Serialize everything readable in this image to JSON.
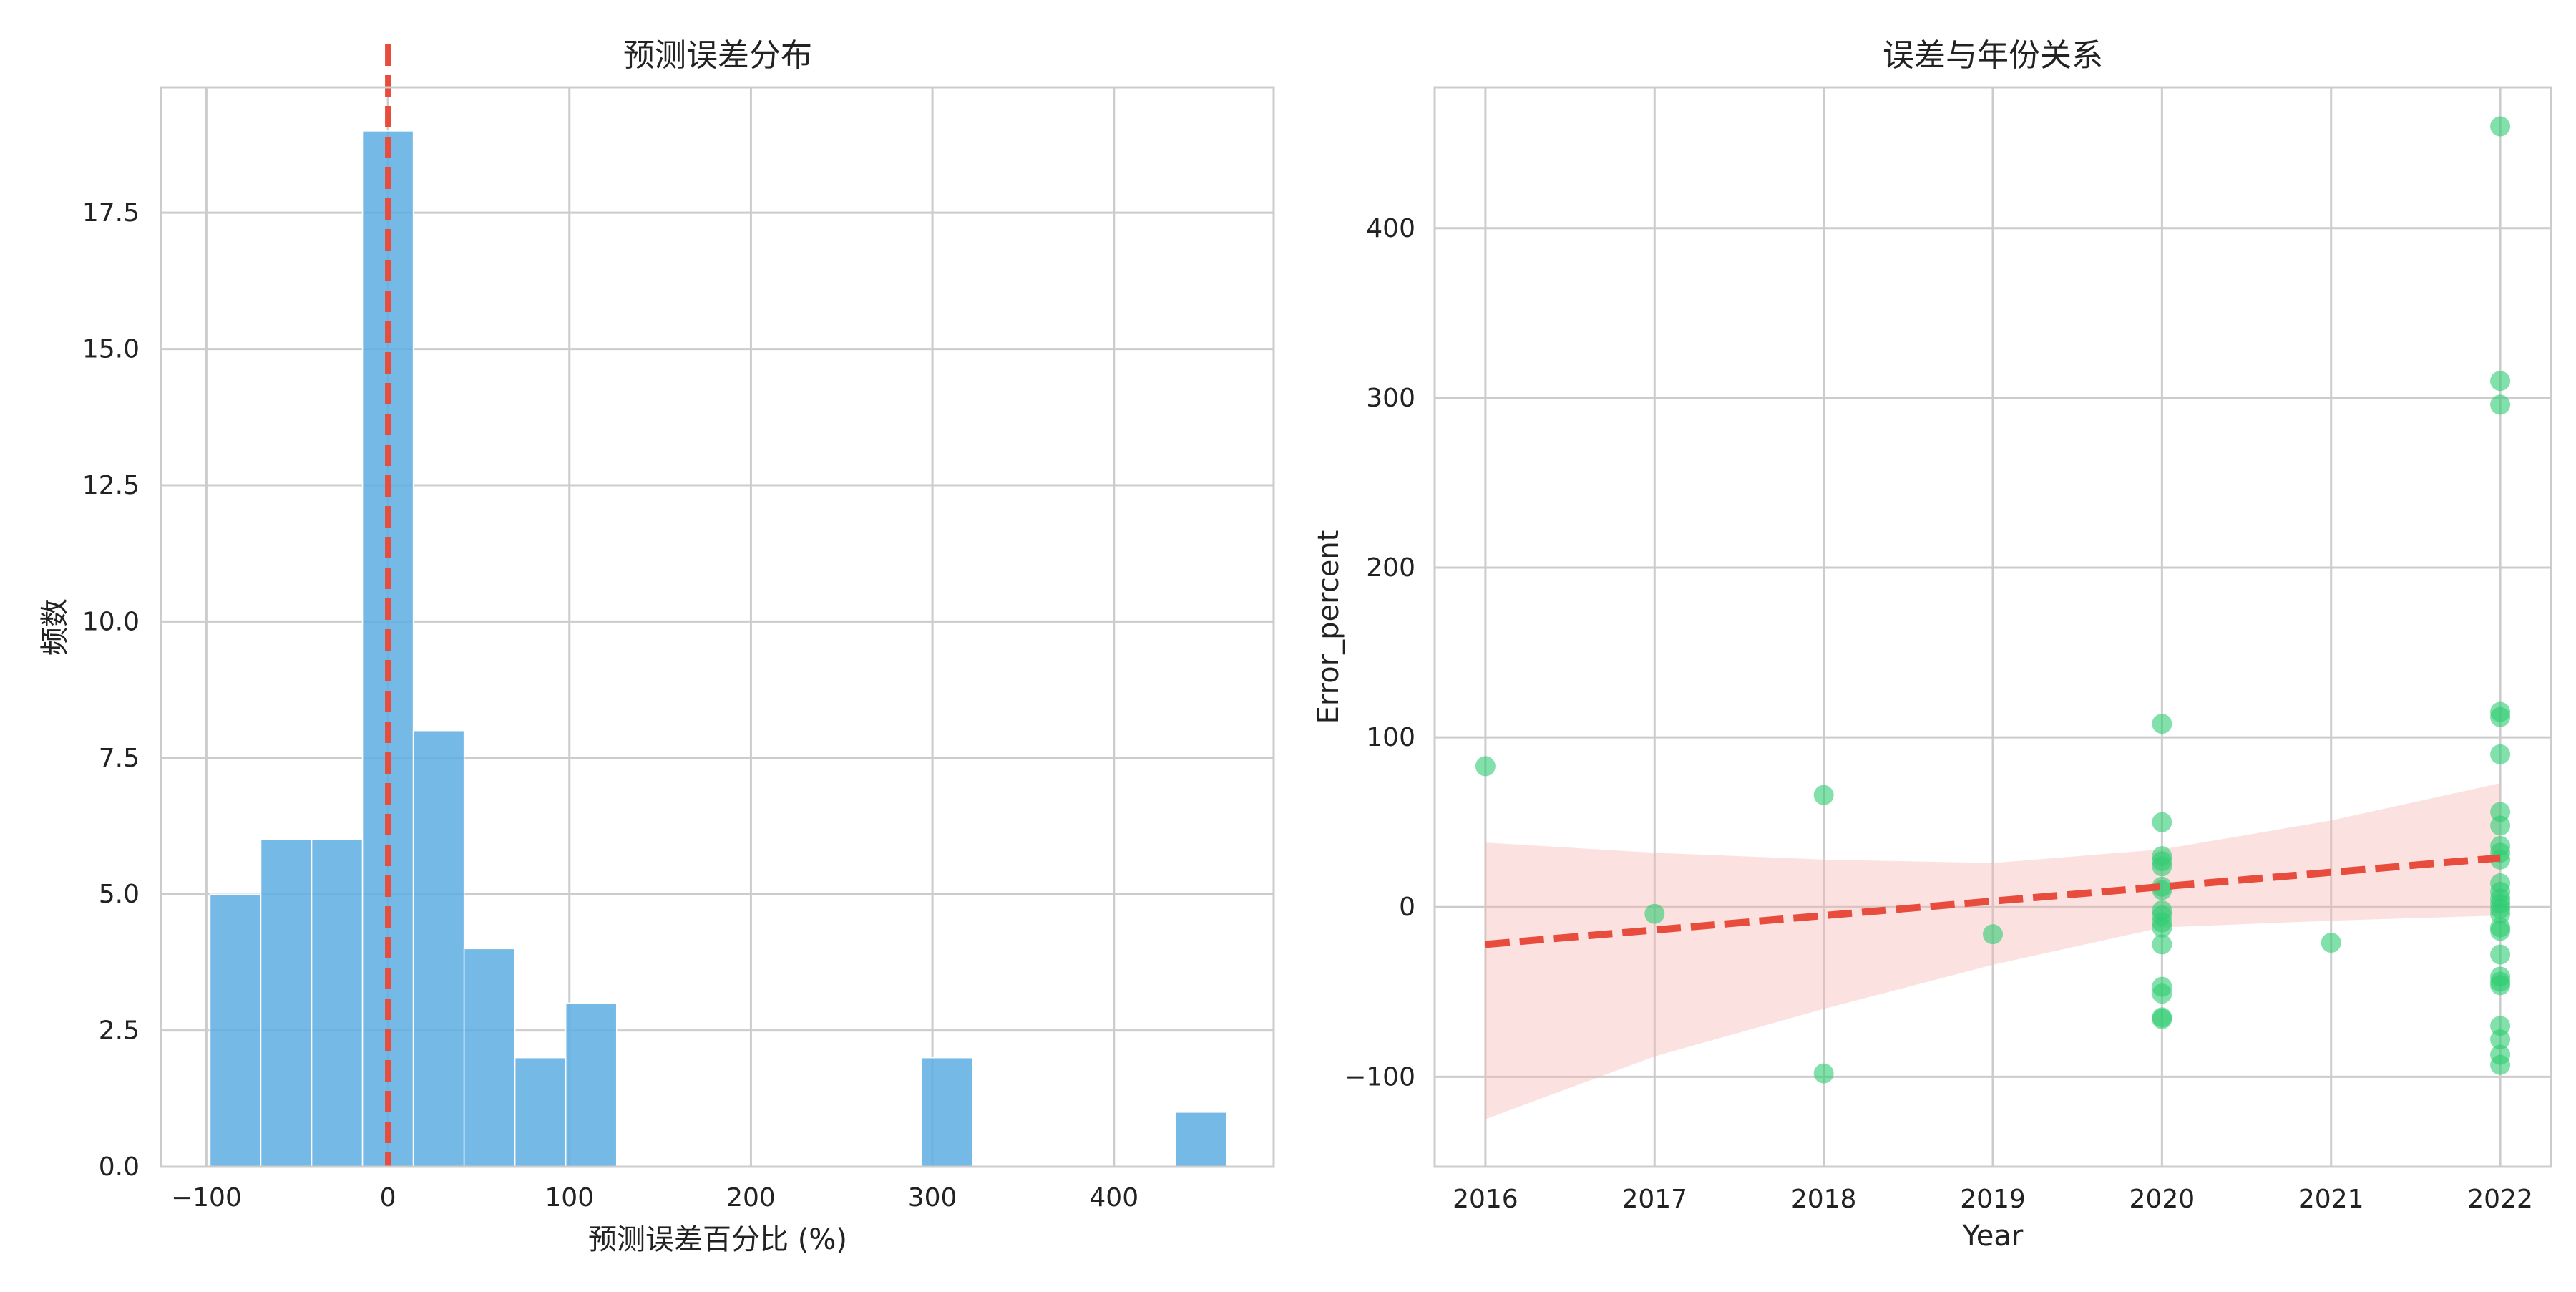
{
  "colors": {
    "bar_fill": "#5DADE2",
    "scatter_fill": "#2ECC71",
    "line": "#E74C3C",
    "band": "#F5B7B1",
    "grid": "#CCCCCC"
  },
  "chart_data": [
    {
      "type": "bar",
      "title": "预测误差分布",
      "xlabel": "预测误差百分比 (%)",
      "ylabel": "频数",
      "xlim": [
        -125,
        488
      ],
      "ylim": [
        0,
        19.8
      ],
      "xticks": [
        -100,
        0,
        100,
        200,
        300,
        400
      ],
      "xtick_labels": [
        "−100",
        "0",
        "100",
        "200",
        "300",
        "400"
      ],
      "yticks": [
        0,
        2.5,
        5,
        7.5,
        10,
        12.5,
        15,
        17.5
      ],
      "ytick_labels": [
        "0.0",
        "2.5",
        "5.0",
        "7.5",
        "10.0",
        "12.5",
        "15.0",
        "17.5"
      ],
      "bins": [
        {
          "x0": -98,
          "x1": -70,
          "value": 5
        },
        {
          "x0": -70,
          "x1": -42,
          "value": 6
        },
        {
          "x0": -42,
          "x1": -14,
          "value": 6
        },
        {
          "x0": -14,
          "x1": 14,
          "value": 19
        },
        {
          "x0": 14,
          "x1": 42,
          "value": 8
        },
        {
          "x0": 42,
          "x1": 70,
          "value": 4
        },
        {
          "x0": 70,
          "x1": 98,
          "value": 2
        },
        {
          "x0": 98,
          "x1": 126,
          "value": 3
        },
        {
          "x0": 126,
          "x1": 154,
          "value": 0
        },
        {
          "x0": 154,
          "x1": 182,
          "value": 0
        },
        {
          "x0": 182,
          "x1": 210,
          "value": 0
        },
        {
          "x0": 210,
          "x1": 238,
          "value": 0
        },
        {
          "x0": 238,
          "x1": 266,
          "value": 0
        },
        {
          "x0": 266,
          "x1": 294,
          "value": 0
        },
        {
          "x0": 294,
          "x1": 322,
          "value": 2
        },
        {
          "x0": 322,
          "x1": 350,
          "value": 0
        },
        {
          "x0": 350,
          "x1": 378,
          "value": 0
        },
        {
          "x0": 378,
          "x1": 406,
          "value": 0
        },
        {
          "x0": 406,
          "x1": 434,
          "value": 0
        },
        {
          "x0": 434,
          "x1": 462,
          "value": 1
        }
      ],
      "reference_line_x": 0,
      "grid": true
    },
    {
      "type": "scatter",
      "title": "误差与年份关系",
      "xlabel": "Year",
      "ylabel": "Error_percent",
      "xlim": [
        2015.7,
        2022.3
      ],
      "ylim": [
        -153,
        483
      ],
      "xticks": [
        2016,
        2017,
        2018,
        2019,
        2020,
        2021,
        2022
      ],
      "xtick_labels": [
        "2016",
        "2017",
        "2018",
        "2019",
        "2020",
        "2021",
        "2022"
      ],
      "yticks": [
        -100,
        0,
        100,
        200,
        300,
        400
      ],
      "ytick_labels": [
        "−100",
        "0",
        "100",
        "200",
        "300",
        "400"
      ],
      "points": [
        [
          2016,
          83
        ],
        [
          2017,
          -4
        ],
        [
          2018,
          66
        ],
        [
          2018,
          -98
        ],
        [
          2019,
          -16
        ],
        [
          2021,
          -21
        ],
        [
          2020,
          108
        ],
        [
          2020,
          50
        ],
        [
          2020,
          30
        ],
        [
          2020,
          27
        ],
        [
          2020,
          24
        ],
        [
          2020,
          12
        ],
        [
          2020,
          10
        ],
        [
          2020,
          -2
        ],
        [
          2020,
          -5
        ],
        [
          2020,
          -9
        ],
        [
          2020,
          -12
        ],
        [
          2020,
          -22
        ],
        [
          2020,
          -47
        ],
        [
          2020,
          -51
        ],
        [
          2020,
          -65
        ],
        [
          2020,
          -66
        ],
        [
          2022,
          460
        ],
        [
          2022,
          310
        ],
        [
          2022,
          296
        ],
        [
          2022,
          115
        ],
        [
          2022,
          112
        ],
        [
          2022,
          90
        ],
        [
          2022,
          56
        ],
        [
          2022,
          48
        ],
        [
          2022,
          36
        ],
        [
          2022,
          32
        ],
        [
          2022,
          28
        ],
        [
          2022,
          14
        ],
        [
          2022,
          9
        ],
        [
          2022,
          5
        ],
        [
          2022,
          2
        ],
        [
          2022,
          -1
        ],
        [
          2022,
          -4
        ],
        [
          2022,
          -12
        ],
        [
          2022,
          -14
        ],
        [
          2022,
          -28
        ],
        [
          2022,
          -41
        ],
        [
          2022,
          -44
        ],
        [
          2022,
          -46
        ],
        [
          2022,
          -70
        ],
        [
          2022,
          -78
        ],
        [
          2022,
          -87
        ],
        [
          2022,
          -93
        ]
      ],
      "regression": {
        "x0": 2016,
        "y0": -22,
        "x1": 2022,
        "y1": 29
      },
      "confidence_band": {
        "x": [
          2016,
          2017,
          2018,
          2019,
          2020,
          2021,
          2022
        ],
        "lower": [
          -125,
          -88,
          -60,
          -34,
          -12,
          -8,
          -5
        ],
        "upper": [
          38,
          32,
          28,
          26,
          34,
          51,
          73
        ]
      },
      "grid": true
    }
  ]
}
